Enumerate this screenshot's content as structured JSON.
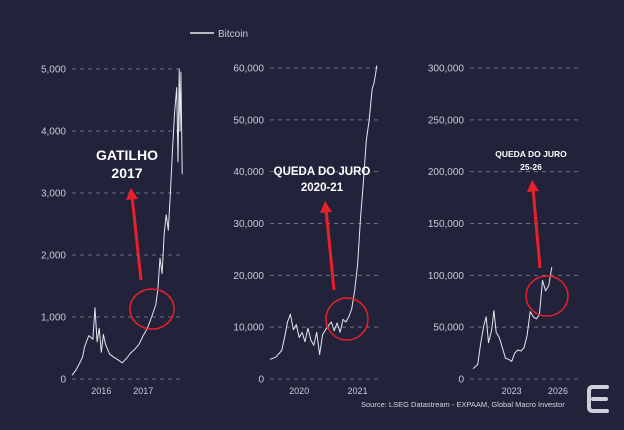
{
  "legend": {
    "label": "Bitcoin",
    "color": "#e6e6ee"
  },
  "source": "Source: LSEG Datastream - EXPAAM, Global Macro Investor",
  "colors": {
    "background": "#22233a",
    "line": "#e6e6ee",
    "annotation": "#e8202a",
    "grid": "#6c6e86"
  },
  "logo_icon": "logo-icon",
  "chart_data": [
    {
      "type": "line",
      "legend": "Bitcoin",
      "grid": "horizontal dashed",
      "ylim": [
        0,
        5000
      ],
      "yticks": [
        0,
        1000,
        2000,
        3000,
        4000,
        5000
      ],
      "ytick_labels": [
        "0",
        "1,000",
        "2,000",
        "3,000",
        "4,000",
        "5,000"
      ],
      "xlim": [
        2015.3,
        2017.95
      ],
      "xticks": [
        2016,
        2017
      ],
      "xtick_labels": [
        "2016",
        "2017"
      ],
      "series": [
        {
          "x": [
            2015.3,
            2015.4,
            2015.5,
            2015.55,
            2015.6,
            2015.7,
            2015.8,
            2015.85,
            2015.9,
            2015.95,
            2016.0,
            2016.05,
            2016.1,
            2016.2,
            2016.3,
            2016.4,
            2016.5,
            2016.55,
            2016.6,
            2016.7,
            2016.8,
            2016.9,
            2017.0,
            2017.1,
            2017.2,
            2017.3,
            2017.35,
            2017.4,
            2017.45,
            2017.5,
            2017.55,
            2017.6,
            2017.65,
            2017.7,
            2017.75,
            2017.8,
            2017.83,
            2017.86,
            2017.88,
            2017.9,
            2017.93
          ],
          "y": [
            60,
            150,
            280,
            350,
            520,
            700,
            640,
            1150,
            600,
            820,
            430,
            720,
            560,
            400,
            350,
            310,
            260,
            300,
            330,
            420,
            480,
            560,
            700,
            820,
            1000,
            1200,
            1450,
            1950,
            1700,
            2350,
            2650,
            2400,
            3000,
            3700,
            4300,
            4700,
            3500,
            5000,
            4000,
            4950,
            3300
          ]
        }
      ],
      "annotation": {
        "text": [
          "GATILHO",
          "2017"
        ]
      }
    },
    {
      "type": "line",
      "legend": "Bitcoin",
      "grid": "horizontal dashed",
      "ylim": [
        0,
        60000
      ],
      "yticks": [
        0,
        10000,
        20000,
        30000,
        40000,
        50000,
        60000
      ],
      "ytick_labels": [
        "0",
        "10,000",
        "20,000",
        "30,000",
        "40,000",
        "50,000",
        "60,000"
      ],
      "xlim": [
        2019.5,
        2021.35
      ],
      "xticks": [
        2020,
        2021
      ],
      "xtick_labels": [
        "2020",
        "2021"
      ],
      "series": [
        {
          "x": [
            2019.5,
            2019.6,
            2019.7,
            2019.75,
            2019.8,
            2019.85,
            2019.9,
            2019.95,
            2020.0,
            2020.05,
            2020.1,
            2020.15,
            2020.2,
            2020.25,
            2020.3,
            2020.35,
            2020.4,
            2020.45,
            2020.5,
            2020.55,
            2020.6,
            2020.65,
            2020.7,
            2020.75,
            2020.8,
            2020.85,
            2020.9,
            2020.95,
            2021.0,
            2021.05,
            2021.1,
            2021.15,
            2021.2,
            2021.25,
            2021.28,
            2021.31,
            2021.33
          ],
          "y": [
            3800,
            4200,
            5500,
            8000,
            11000,
            12500,
            9500,
            10500,
            8000,
            9000,
            7200,
            9800,
            7500,
            6500,
            9000,
            4700,
            8500,
            9500,
            10300,
            11000,
            9300,
            10800,
            9000,
            11500,
            11000,
            12000,
            13500,
            17000,
            22000,
            31000,
            38000,
            46000,
            50000,
            56000,
            57000,
            59000,
            60500
          ]
        }
      ],
      "annotation": {
        "text": [
          "QUEDA DO JURO",
          "2020-21"
        ]
      }
    },
    {
      "type": "line",
      "legend": "Bitcoin",
      "grid": "horizontal dashed",
      "ylim": [
        0,
        300000
      ],
      "yticks": [
        0,
        50000,
        100000,
        150000,
        200000,
        250000,
        300000
      ],
      "ytick_labels": [
        "0",
        "50,000",
        "100,000",
        "150,000",
        "200,000",
        "250,000",
        "300,000"
      ],
      "xlim": [
        2020.3,
        2027.3
      ],
      "xticks": [
        2023,
        2026
      ],
      "xtick_labels": [
        "2023",
        "2026"
      ],
      "series": [
        {
          "x": [
            2020.5,
            2020.8,
            2021.0,
            2021.2,
            2021.35,
            2021.5,
            2021.7,
            2021.85,
            2022.0,
            2022.2,
            2022.4,
            2022.6,
            2022.8,
            2023.0,
            2023.2,
            2023.4,
            2023.6,
            2023.8,
            2024.0,
            2024.2,
            2024.4,
            2024.6,
            2024.8,
            2025.0,
            2025.2,
            2025.4,
            2025.6
          ],
          "y": [
            10000,
            14000,
            35000,
            52000,
            60000,
            35000,
            47000,
            66000,
            45000,
            40000,
            30000,
            20000,
            19000,
            17000,
            25000,
            28000,
            27000,
            30000,
            42000,
            65000,
            60000,
            58000,
            62000,
            95000,
            85000,
            90000,
            108000
          ]
        }
      ],
      "annotation": {
        "text": [
          "QUEDA DO JURO",
          "25-26"
        ]
      }
    }
  ]
}
